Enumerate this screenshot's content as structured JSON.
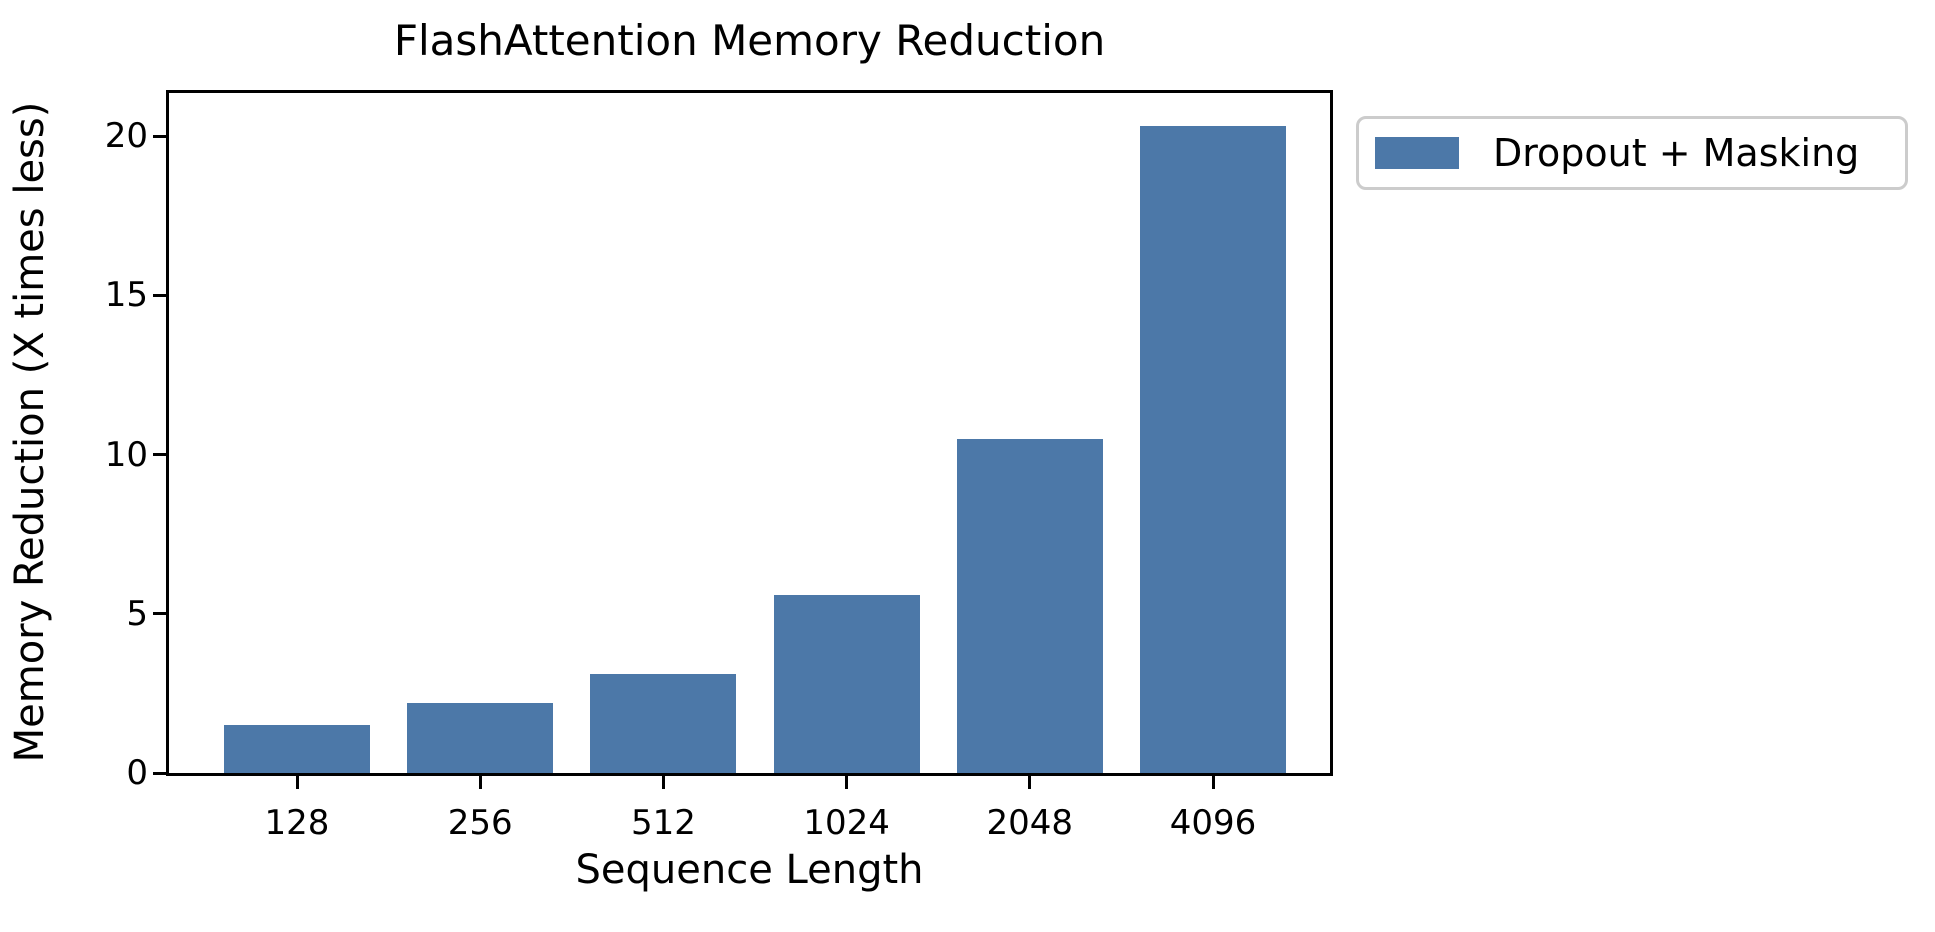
{
  "chart_data": {
    "type": "bar",
    "title": "FlashAttention Memory Reduction",
    "xlabel": "Sequence Length",
    "ylabel": "Memory Reduction (X times less)",
    "categories": [
      "128",
      "256",
      "512",
      "1024",
      "2048",
      "4096"
    ],
    "series": [
      {
        "name": "Dropout + Masking",
        "values": [
          1.5,
          2.2,
          3.1,
          5.6,
          10.5,
          20.3
        ]
      }
    ],
    "yticks": [
      0,
      5,
      10,
      15,
      20
    ],
    "ylim": [
      0,
      21.35
    ],
    "grid": false,
    "legend_position": "outside-upper-right",
    "bar_color": "#4C78A8"
  },
  "legend": {
    "items": [
      {
        "label": "Dropout + Masking",
        "color": "#4C78A8"
      }
    ]
  },
  "colors": {
    "bar": "#4C78A8",
    "text": "#000000",
    "spine": "#000000",
    "legend_border": "#cccccc",
    "background": "#ffffff"
  }
}
